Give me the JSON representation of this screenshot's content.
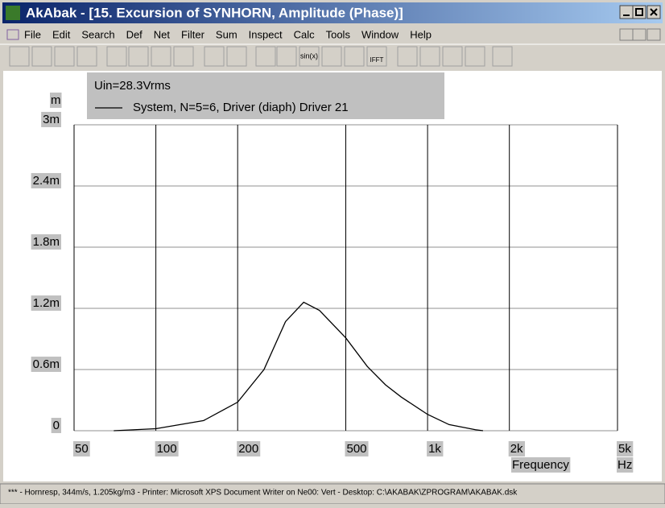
{
  "window": {
    "title": "AkAbak - [15. Excursion of SYNHORN, Amplitude (Phase)]",
    "menu": [
      "File",
      "Edit",
      "Search",
      "Def",
      "Net",
      "Filter",
      "Sum",
      "Inspect",
      "Calc",
      "Tools",
      "Window",
      "Help"
    ],
    "toolbar_labels": [
      "sin(x)",
      "IFFT"
    ],
    "status": "*** - Hornresp, 344m/s, 1.205kg/m3 - Printer: Microsoft XPS Document Writer on Ne00: Vert - Desktop: C:\\AKABAK\\ZPROGRAM\\AKABAK.dsk"
  },
  "chart_data": {
    "type": "line",
    "annotation": "Uin=28.3Vrms",
    "y_label": "m",
    "x_label": "Frequency",
    "x_unit": "Hz",
    "x": [
      70,
      100,
      150,
      200,
      250,
      300,
      350,
      400,
      500,
      600,
      700,
      800,
      1000,
      1200,
      1500,
      1600
    ],
    "series": [
      {
        "name": "System, N=5=6, Driver (diaph) Driver 21",
        "color": "#000000",
        "values": [
          0,
          2e-05,
          0.0001,
          0.00028,
          0.0006,
          0.00107,
          0.00126,
          0.00118,
          0.00091,
          0.00063,
          0.00045,
          0.00033,
          0.00016,
          6e-05,
          1e-05,
          0
        ]
      }
    ],
    "xlim": [
      50,
      5000
    ],
    "ylim": [
      0,
      0.003
    ],
    "log_x": true,
    "grid": true,
    "xticks": [
      50,
      100,
      200,
      500,
      {
        "value": 1000,
        "label": "1k"
      },
      {
        "value": 2000,
        "label": "2k"
      },
      {
        "value": 5000,
        "label": "5k"
      }
    ],
    "yticks": [
      0,
      {
        "value": 0.0006,
        "label": "0.6m"
      },
      {
        "value": 0.0012,
        "label": "1.2m"
      },
      {
        "value": 0.0018,
        "label": "1.8m"
      },
      {
        "value": 0.0024,
        "label": "2.4m"
      },
      {
        "value": 0.003,
        "label": "3m"
      }
    ]
  }
}
